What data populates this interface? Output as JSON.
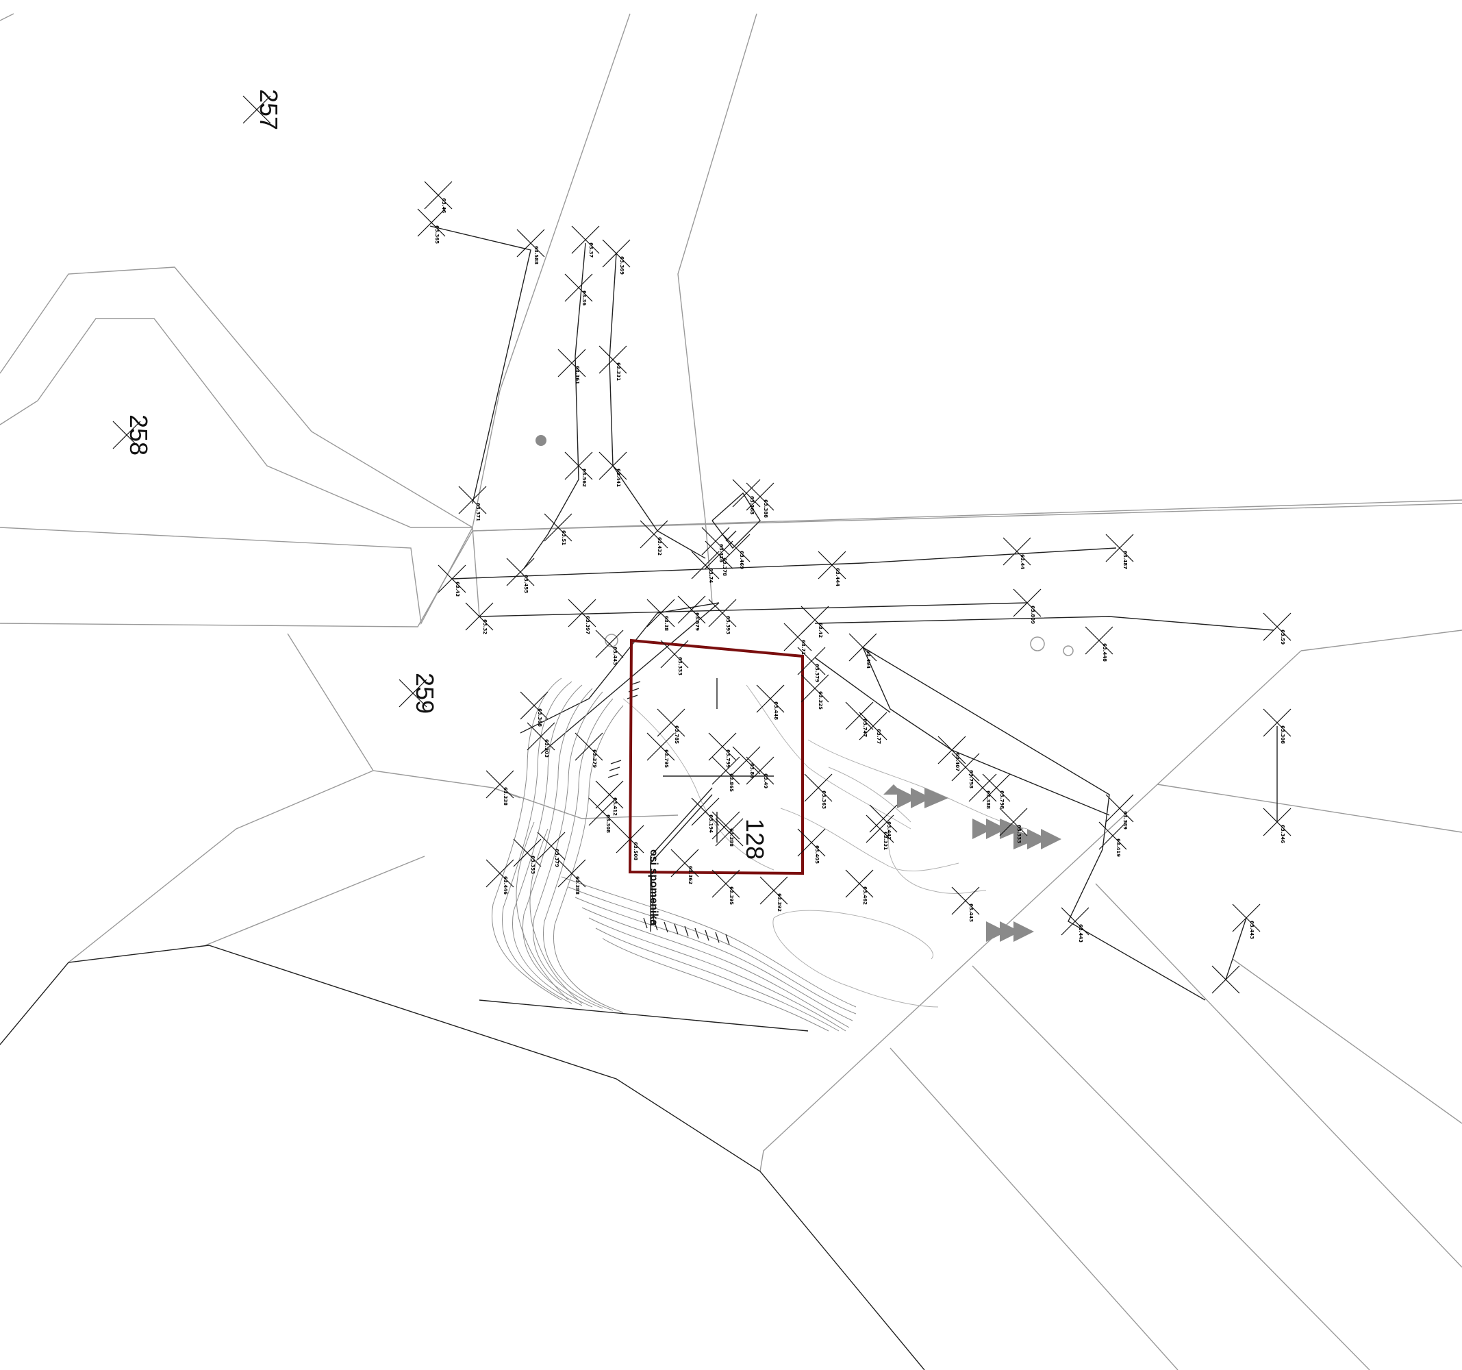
{
  "map": {
    "parcels": [
      {
        "id": "parcel-257",
        "label": "257"
      },
      {
        "id": "parcel-258",
        "label": "258"
      },
      {
        "id": "parcel-259",
        "label": "259"
      },
      {
        "id": "parcel-128",
        "label": "128"
      }
    ],
    "axis_label": "osi spomenika",
    "colors": {
      "building_outline": "#7a0e0e",
      "parcel_lines": "#9a9a9a",
      "survey_lines": "#222222",
      "trees": "#8a8a8a"
    },
    "spot_heights": [
      "63.46",
      "63.365",
      "63.588",
      "63.37",
      "63.369",
      "63.36",
      "63.361",
      "63.331",
      "63.562",
      "63.441",
      "63.368",
      "63.388",
      "63.371",
      "63.51",
      "63.432",
      "63.316",
      "63.378",
      "63.74",
      "63.469",
      "63.444",
      "63.44",
      "63.487",
      "63.43",
      "63.455",
      "63.32",
      "63.397",
      "63.38",
      "63.579",
      "63.393",
      "63.42",
      "63.71",
      "63.809",
      "63.448",
      "63.59",
      "63.443",
      "63.333",
      "63.494",
      "63.379",
      "63.368",
      "63.785",
      "63.448",
      "63.325",
      "63.747",
      "63.77",
      "63.407",
      "63.758",
      "63.388",
      "63.303",
      "63.379",
      "63.795",
      "63.799",
      "63.86",
      "63.865",
      "63.49",
      "63.338",
      "63.412",
      "63.308",
      "63.363",
      "63.441",
      "63.798",
      "63.333",
      "63.339",
      "63.419",
      "63.308",
      "63.346",
      "63.508",
      "63.194",
      "63.388",
      "63.353",
      "63.405",
      "63.331",
      "63.446",
      "63.379",
      "63.388",
      "63.362",
      "63.395",
      "63.392",
      "63.462",
      "63.443",
      "63.443",
      "63.443"
    ]
  }
}
